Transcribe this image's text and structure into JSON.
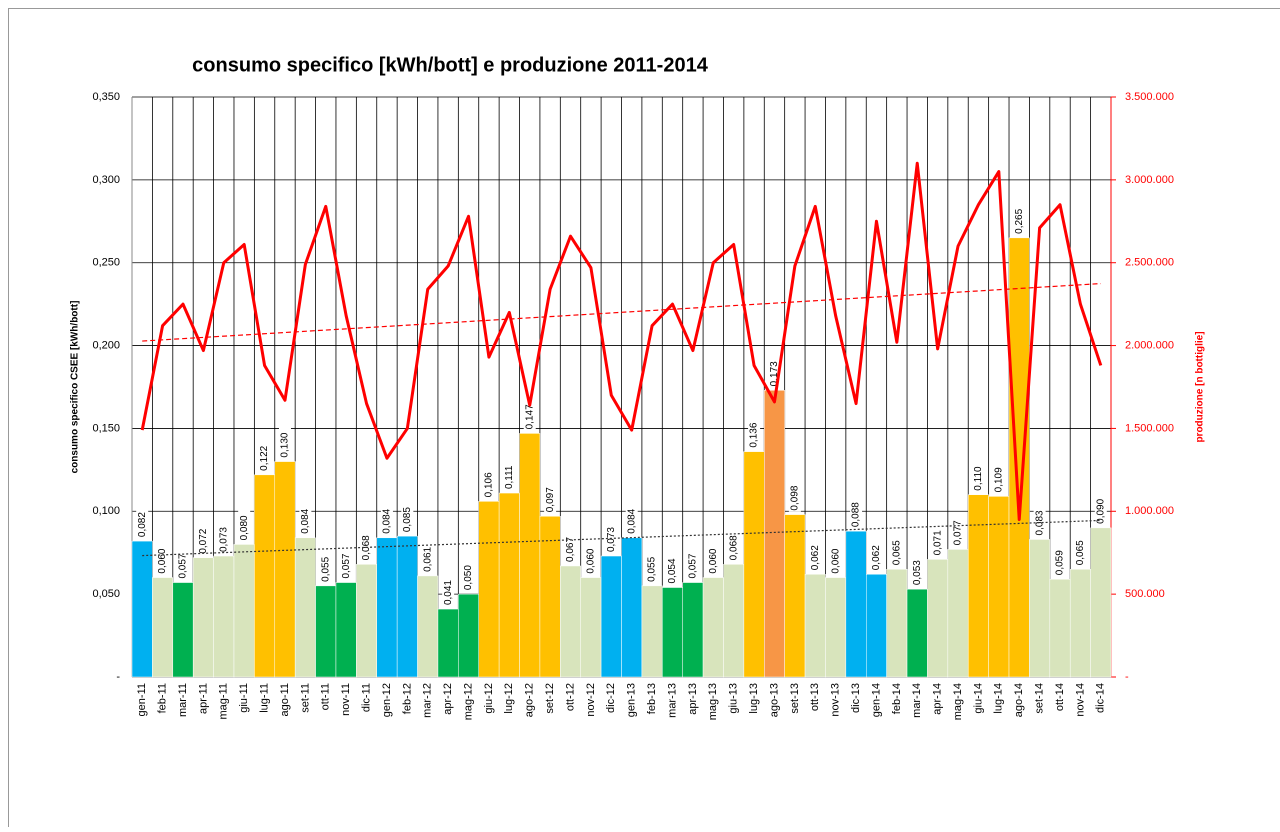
{
  "chart_data": {
    "type": "bar-line",
    "title": "consumo specifico [kWh/bott] e produzione 2011-2014",
    "y_label": "consumo specifico CSEE [kWh/bott]",
    "y2_label": "produzione [n bottiglie]",
    "categories": [
      "gen-11",
      "feb-11",
      "mar-11",
      "apr-11",
      "mag-11",
      "giu-11",
      "lug-11",
      "ago-11",
      "set-11",
      "ott-11",
      "nov-11",
      "dic-11",
      "gen-12",
      "feb-12",
      "mar-12",
      "apr-12",
      "mag-12",
      "giu-12",
      "lug-12",
      "ago-12",
      "set-12",
      "ott-12",
      "nov-12",
      "dic-12",
      "gen-13",
      "feb-13",
      "mar-13",
      "apr-13",
      "mag-13",
      "giu-13",
      "lug-13",
      "ago-13",
      "set-13",
      "ott-13",
      "nov-13",
      "dic-13",
      "gen-14",
      "feb-14",
      "mar-14",
      "apr-14",
      "mag-14",
      "giu-14",
      "lug-14",
      "ago-14",
      "set-14",
      "ott-14",
      "nov-14",
      "dic-14"
    ],
    "series": [
      {
        "type": "bar",
        "trendline": true,
        "values": [
          0.082,
          0.06,
          0.057,
          0.072,
          0.073,
          0.08,
          0.122,
          0.13,
          0.084,
          0.055,
          0.057,
          0.068,
          0.084,
          0.085,
          0.061,
          0.041,
          0.05,
          0.106,
          0.111,
          0.147,
          0.097,
          0.067,
          0.06,
          0.073,
          0.084,
          0.055,
          0.054,
          0.057,
          0.06,
          0.068,
          0.136,
          0.173,
          0.098,
          0.062,
          0.06,
          0.088,
          0.062,
          0.065,
          0.053,
          0.071,
          0.077,
          0.11,
          0.109,
          0.265,
          0.083,
          0.059,
          0.065,
          0.09
        ],
        "value_labels": [
          "0,082",
          "0,060",
          "0,057",
          "0,072",
          "0,073",
          "0,080",
          "0,122",
          "0,130",
          "0,084",
          "0,055",
          "0,057",
          "0,068",
          "0,084",
          "0,085",
          "0,061",
          "0,041",
          "0,050",
          "0,106",
          "0,111",
          "0,147",
          "0,097",
          "0,067",
          "0,060",
          "0,073",
          "0,084",
          "0,055",
          "0,054",
          "0,057",
          "0,060",
          "0,068",
          "0,136",
          "0,173",
          "0,098",
          "0,062",
          "0,060",
          "0,088",
          "0,062",
          "0,065",
          "0,053",
          "0,071",
          "0,077",
          "0,110",
          "0,109",
          "0,265",
          "0,083",
          "0,059",
          "0,065",
          "0,090"
        ],
        "colors": [
          "#00b0f0",
          "#d8e4bc",
          "#00b050",
          "#d8e4bc",
          "#d8e4bc",
          "#d8e4bc",
          "#ffc000",
          "#ffc000",
          "#d8e4bc",
          "#00b050",
          "#00b050",
          "#d8e4bc",
          "#00b0f0",
          "#00b0f0",
          "#d8e4bc",
          "#00b050",
          "#00b050",
          "#ffc000",
          "#ffc000",
          "#ffc000",
          "#ffc000",
          "#d8e4bc",
          "#d8e4bc",
          "#00b0f0",
          "#00b0f0",
          "#d8e4bc",
          "#00b050",
          "#00b050",
          "#d8e4bc",
          "#d8e4bc",
          "#ffc000",
          "#f79646",
          "#ffc000",
          "#d8e4bc",
          "#d8e4bc",
          "#00b0f0",
          "#00b0f0",
          "#d8e4bc",
          "#00b050",
          "#d8e4bc",
          "#d8e4bc",
          "#ffc000",
          "#ffc000",
          "#ffc000",
          "#d8e4bc",
          "#d8e4bc",
          "#d8e4bc",
          "#d8e4bc"
        ]
      },
      {
        "type": "line",
        "axis": "y2",
        "color": "#ff0000",
        "trendline": true,
        "values": [
          1490000,
          2120000,
          2250000,
          1970000,
          2500000,
          2610000,
          1880000,
          1670000,
          2490000,
          2840000,
          2180000,
          1650000,
          1320000,
          1500000,
          2340000,
          2480000,
          2780000,
          1930000,
          2200000,
          1640000,
          2340000,
          2660000,
          2470000,
          1700000,
          1490000,
          2120000,
          2250000,
          1970000,
          2500000,
          2610000,
          1880000,
          1660000,
          2480000,
          2840000,
          2180000,
          1650000,
          2750000,
          2020000,
          3100000,
          1980000,
          2600000,
          2850000,
          3050000,
          950000,
          2710000,
          2850000,
          2250000,
          1880000
        ]
      }
    ],
    "ylim": [
      0,
      0.35
    ],
    "yticks": [
      {
        "value": 0,
        "label": "-"
      },
      {
        "value": 0.05,
        "label": "0,050"
      },
      {
        "value": 0.1,
        "label": "0,100"
      },
      {
        "value": 0.15,
        "label": "0,150"
      },
      {
        "value": 0.2,
        "label": "0,200"
      },
      {
        "value": 0.25,
        "label": "0,250"
      },
      {
        "value": 0.3,
        "label": "0,300"
      },
      {
        "value": 0.35,
        "label": "0,350"
      }
    ],
    "y2lim": [
      0,
      3500000
    ],
    "y2ticks": [
      {
        "value": 0,
        "label": "-"
      },
      {
        "value": 500000,
        "label": "500.000"
      },
      {
        "value": 1000000,
        "label": "1.000.000"
      },
      {
        "value": 1500000,
        "label": "1.500.000"
      },
      {
        "value": 2000000,
        "label": "2.000.000"
      },
      {
        "value": 2500000,
        "label": "2.500.000"
      },
      {
        "value": 3000000,
        "label": "3.000.000"
      },
      {
        "value": 3500000,
        "label": "3.500.000"
      }
    ],
    "grid": true
  }
}
